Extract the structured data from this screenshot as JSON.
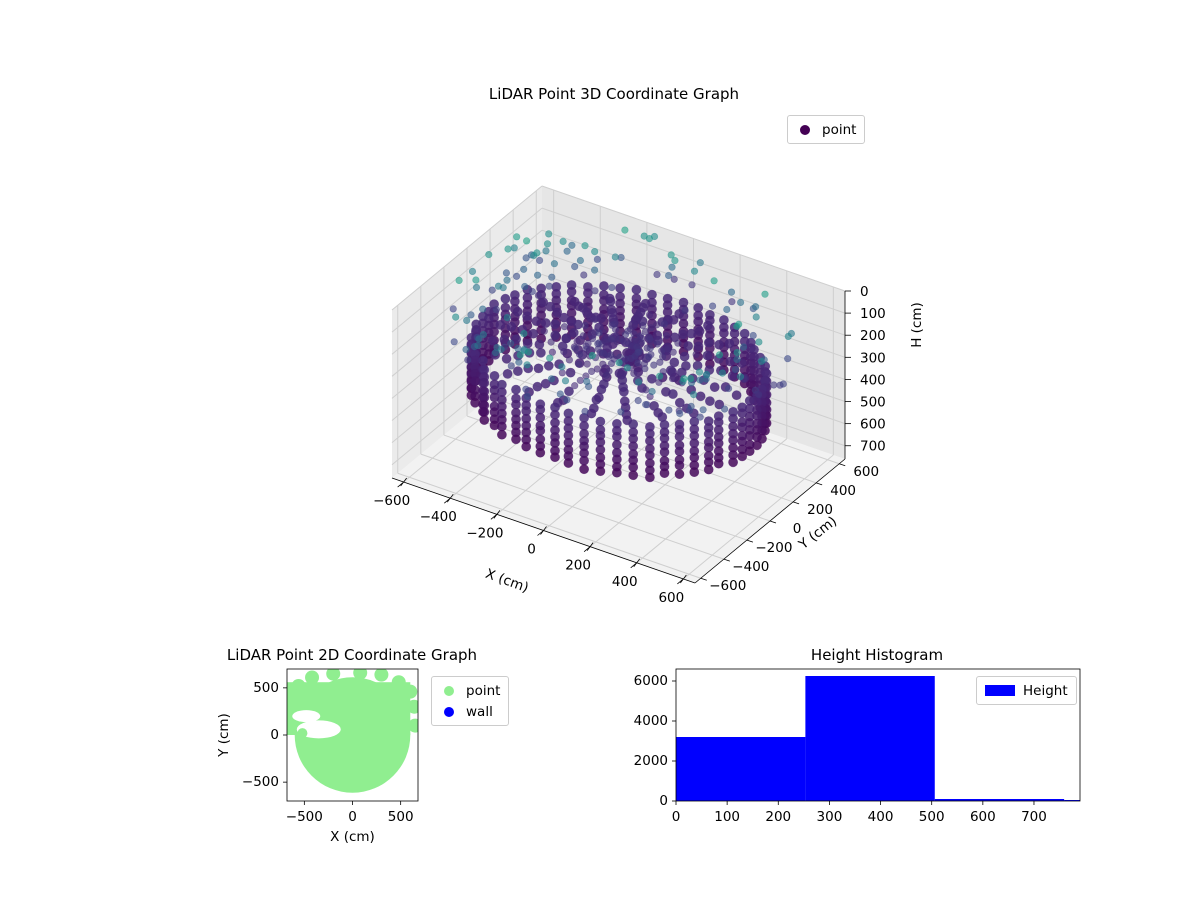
{
  "figure": {
    "background": "#ffffff"
  },
  "chart_data": [
    {
      "id": "scatter3d",
      "type": "scatter",
      "title": "LiDAR Point 3D Coordinate Graph",
      "xlabel": "X (cm)",
      "ylabel": "Y (cm)",
      "zlabel": "H (cm)",
      "xlim": [
        -650,
        650
      ],
      "ylim": [
        -650,
        650
      ],
      "zlim": [
        0,
        760
      ],
      "xticks": [
        -600,
        -400,
        -200,
        0,
        200,
        400,
        600
      ],
      "yticks": [
        -600,
        -400,
        -200,
        0,
        200,
        400,
        600
      ],
      "zticks": [
        0,
        100,
        200,
        300,
        400,
        500,
        600,
        700
      ],
      "grid": true,
      "legend": {
        "placement": "top-right",
        "entries": [
          {
            "label": "point",
            "color": "#440154"
          }
        ]
      },
      "colormap": "viridis",
      "series": [
        {
          "name": "point",
          "color_by": "H",
          "description_of_structure": "ring of points radius ~560 cm at H 250-480, radial rays toward center, sparse outliers higher"
        }
      ]
    },
    {
      "id": "scatter2d",
      "type": "scatter",
      "title": "LiDAR Point 2D Coordinate Graph",
      "xlabel": "X (cm)",
      "ylabel": "Y (cm)",
      "xlim": [
        -680,
        680
      ],
      "ylim": [
        -700,
        700
      ],
      "xticks": [
        -500,
        0,
        500
      ],
      "yticks": [
        -500,
        0,
        500
      ],
      "legend": {
        "placement": "outside-right",
        "entries": [
          {
            "label": "point",
            "color": "#90ee90"
          },
          {
            "label": "wall",
            "color": "#0000ff"
          }
        ]
      },
      "series": [
        {
          "name": "point",
          "color": "#90ee90",
          "shape": "disc radius ~600 cm filling axes"
        }
      ]
    },
    {
      "id": "histogram",
      "type": "bar",
      "title": "Height Histogram",
      "xlim": [
        0,
        790
      ],
      "ylim": [
        0,
        6600
      ],
      "xticks": [
        0,
        100,
        200,
        300,
        400,
        500,
        600,
        700
      ],
      "yticks": [
        0,
        2000,
        4000,
        6000
      ],
      "bins": [
        {
          "start": 0,
          "end": 253,
          "count": 3200
        },
        {
          "start": 253,
          "end": 506,
          "count": 6250
        },
        {
          "start": 506,
          "end": 759,
          "count": 100
        },
        {
          "start": 759,
          "end": 790,
          "count": 50
        }
      ],
      "color": "#0000ff",
      "legend": {
        "placement": "top-right",
        "entries": [
          {
            "label": "Height",
            "color": "#0000ff"
          }
        ]
      }
    }
  ]
}
